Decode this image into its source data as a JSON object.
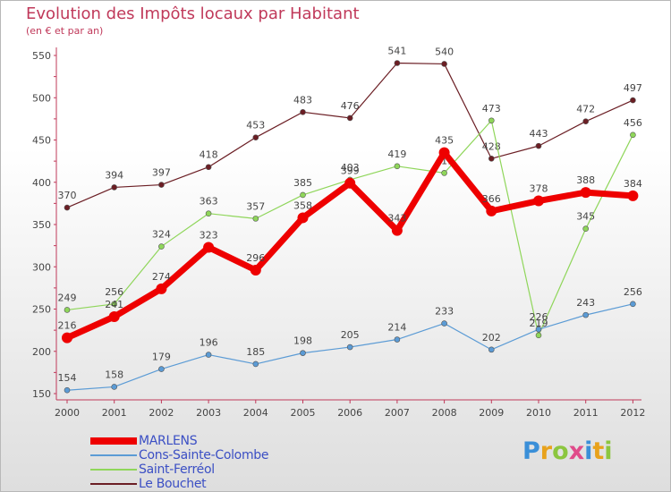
{
  "logo": {
    "text": "Proxiti",
    "letters": [
      "P",
      "r",
      "o",
      "x",
      "i",
      "t",
      "i"
    ],
    "colors": [
      "#3a8fd8",
      "#e8a21c",
      "#8cc63f",
      "#e04b8a",
      "#3a8fd8",
      "#e8a21c",
      "#8cc63f"
    ]
  },
  "chart_data": {
    "type": "line",
    "title": "Evolution des Impôts locaux par Habitant",
    "subtitle": "(en € et par an)",
    "categories": [
      "2000",
      "2001",
      "2002",
      "2003",
      "2004",
      "2005",
      "2006",
      "2007",
      "2008",
      "2009",
      "2010",
      "2011",
      "2012"
    ],
    "ylim": [
      150,
      550
    ],
    "yticks": [
      150,
      200,
      250,
      300,
      350,
      400,
      450,
      500,
      550
    ],
    "grid": false,
    "legend_position": "bottom-left",
    "series": [
      {
        "name": "Le Bouchet",
        "color": "#6b1e24",
        "weight": "thin",
        "values": [
          370,
          394,
          397,
          418,
          453,
          483,
          476,
          541,
          540,
          428,
          443,
          472,
          497
        ]
      },
      {
        "name": "Saint-Ferréol",
        "color": "#8fd65a",
        "weight": "thin",
        "values": [
          249,
          256,
          324,
          363,
          357,
          385,
          403,
          419,
          411,
          473,
          219,
          345,
          456
        ]
      },
      {
        "name": "Cons-Sainte-Colombe",
        "color": "#5b9bd5",
        "weight": "thin",
        "values": [
          154,
          158,
          179,
          196,
          185,
          198,
          205,
          214,
          233,
          202,
          226,
          243,
          256
        ]
      },
      {
        "name": "MARLENS",
        "color": "#ee0000",
        "weight": "thick",
        "values": [
          216,
          241,
          274,
          323,
          296,
          358,
          399,
          343,
          435,
          366,
          378,
          388,
          384
        ]
      }
    ],
    "legend": [
      "MARLENS",
      "Cons-Sainte-Colombe",
      "Saint-Ferréol",
      "Le Bouchet"
    ]
  }
}
